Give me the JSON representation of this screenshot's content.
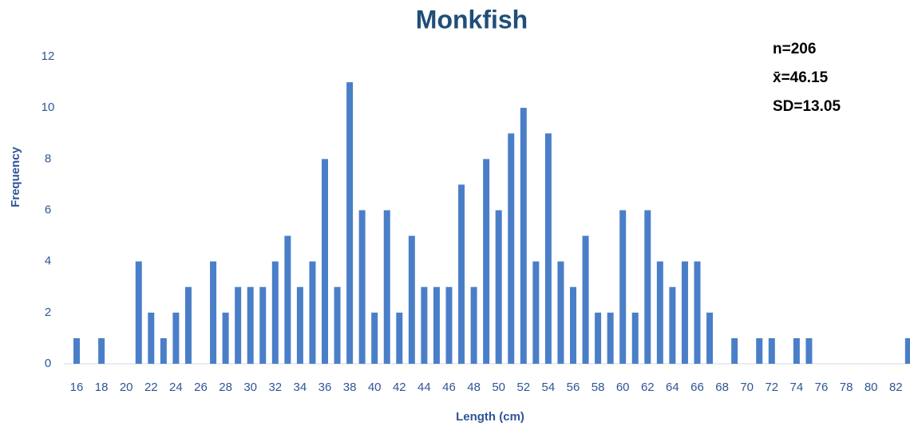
{
  "chart_data": {
    "type": "bar",
    "title": "Monkfish",
    "x_label": "Length (cm)",
    "y_label": "Frequency",
    "annotations": [
      "n=206",
      "x̄=46.15",
      "SD=13.05"
    ],
    "categories": [
      16,
      null,
      18,
      null,
      20,
      null,
      22,
      null,
      24,
      null,
      26,
      null,
      28,
      null,
      30,
      null,
      32,
      null,
      34,
      null,
      36,
      null,
      38,
      null,
      40,
      null,
      42,
      null,
      44,
      null,
      46,
      null,
      48,
      null,
      50,
      null,
      52,
      null,
      54,
      null,
      56,
      null,
      58,
      null,
      60,
      null,
      62,
      null,
      64,
      null,
      66,
      null,
      68,
      null,
      70,
      null,
      72,
      null,
      74,
      null,
      76,
      null,
      78,
      null,
      80,
      null,
      82,
      null
    ],
    "values": [
      1,
      0,
      1,
      0,
      0,
      4,
      2,
      1,
      2,
      3,
      0,
      4,
      2,
      3,
      3,
      3,
      4,
      5,
      3,
      4,
      8,
      3,
      11,
      6,
      2,
      6,
      2,
      5,
      3,
      3,
      3,
      7,
      3,
      8,
      6,
      9,
      10,
      4,
      9,
      4,
      3,
      5,
      2,
      2,
      6,
      2,
      6,
      4,
      3,
      4,
      4,
      2,
      0,
      1,
      0,
      1,
      1,
      0,
      1,
      1,
      0,
      0,
      0,
      0,
      0,
      0,
      0,
      1
    ],
    "color": "#4a7fc8",
    "ylim": [
      0,
      12
    ],
    "yticks": [
      0,
      2,
      4,
      6,
      8,
      10,
      12
    ],
    "grid": false
  }
}
